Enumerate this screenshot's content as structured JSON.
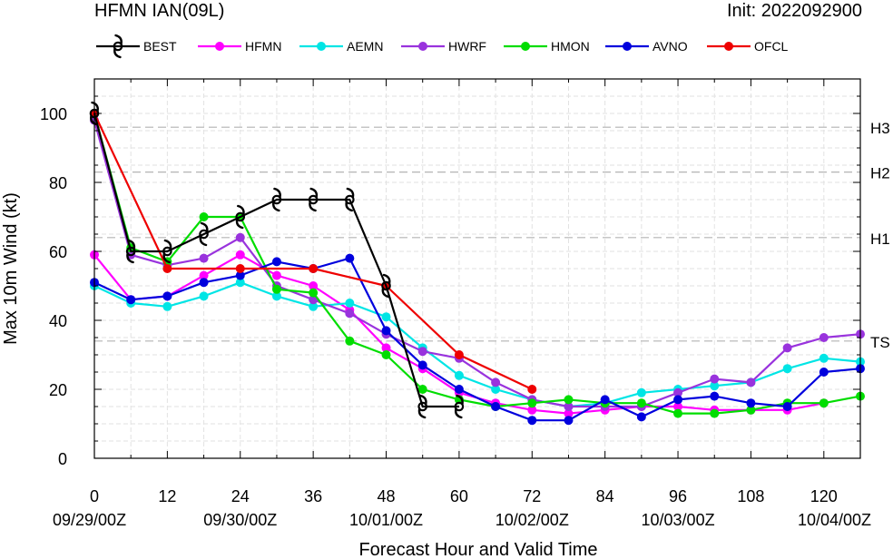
{
  "chart_data": {
    "type": "line",
    "title": "HFMN IAN(09L)",
    "subtitle": "Init: 2022092900",
    "xlabel": "Forecast Hour and Valid Time",
    "ylabel": "Max 10m Wind (kt)",
    "xlim": [
      0,
      126
    ],
    "ylim": [
      0,
      110
    ],
    "grid": true,
    "legend_position": "top",
    "x_ticks": [
      0,
      12,
      24,
      36,
      48,
      60,
      72,
      84,
      96,
      108,
      120
    ],
    "x_tick_labels": [
      "0",
      "12",
      "24",
      "36",
      "48",
      "60",
      "72",
      "84",
      "96",
      "108",
      "120"
    ],
    "x_date_ticks": [
      0,
      24,
      48,
      72,
      96,
      120
    ],
    "x_date_labels": [
      "09/29/00Z",
      "09/30/00Z",
      "10/01/00Z",
      "10/02/00Z",
      "10/03/00Z",
      "10/04/00Z"
    ],
    "y_ticks": [
      0,
      20,
      40,
      60,
      80,
      100
    ],
    "y_tick_labels": [
      "0",
      "20",
      "40",
      "60",
      "80",
      "100"
    ],
    "thresholds": [
      {
        "label": "TS",
        "value": 34
      },
      {
        "label": "H1",
        "value": 64
      },
      {
        "label": "H2",
        "value": 83
      },
      {
        "label": "H3",
        "value": 96
      }
    ],
    "series": [
      {
        "name": "BEST",
        "color": "#000000",
        "marker": "hurricane-symbol",
        "x": [
          0,
          6,
          12,
          18,
          24,
          30,
          36,
          42,
          48,
          54,
          60
        ],
        "values": [
          100,
          60,
          60,
          65,
          70,
          75,
          75,
          75,
          50,
          15,
          15
        ]
      },
      {
        "name": "HFMN",
        "color": "#ff00ff",
        "marker": "circle",
        "x": [
          0,
          6,
          12,
          18,
          24,
          30,
          36,
          42,
          48,
          54,
          60,
          66,
          72,
          78,
          84,
          90,
          96,
          102,
          108,
          114,
          120
        ],
        "values": [
          59,
          46,
          47,
          53,
          59,
          53,
          50,
          43,
          32,
          26,
          19,
          16,
          14,
          13,
          14,
          15,
          15,
          14,
          14,
          14,
          16
        ]
      },
      {
        "name": "AEMN",
        "color": "#00e5e5",
        "marker": "circle",
        "x": [
          0,
          6,
          12,
          18,
          24,
          30,
          36,
          42,
          48,
          54,
          60,
          66,
          72,
          78,
          84,
          90,
          96,
          102,
          108,
          114,
          120,
          126
        ],
        "values": [
          50,
          45,
          44,
          47,
          51,
          47,
          44,
          45,
          41,
          32,
          24,
          20,
          17,
          15,
          16,
          19,
          20,
          21,
          22,
          26,
          29,
          28
        ]
      },
      {
        "name": "HWRF",
        "color": "#9933dd",
        "marker": "circle",
        "x": [
          0,
          6,
          12,
          18,
          24,
          30,
          36,
          42,
          48,
          54,
          60,
          66,
          72,
          78,
          84,
          90,
          96,
          102,
          108,
          114,
          120,
          126
        ],
        "values": [
          98,
          59,
          56,
          58,
          64,
          50,
          46,
          42,
          36,
          31,
          29,
          22,
          17,
          15,
          15,
          15,
          19,
          23,
          22,
          32,
          35,
          36
        ]
      },
      {
        "name": "HMON",
        "color": "#00dd00",
        "marker": "circle",
        "x": [
          0,
          6,
          12,
          18,
          24,
          30,
          36,
          42,
          48,
          54,
          60,
          66,
          72,
          78,
          84,
          90,
          96,
          102,
          108,
          114,
          120,
          126
        ],
        "values": [
          100,
          61,
          57,
          70,
          70,
          49,
          48,
          34,
          30,
          20,
          17,
          15,
          16,
          17,
          16,
          16,
          13,
          13,
          14,
          16,
          16,
          18
        ]
      },
      {
        "name": "AVNO",
        "color": "#0000dd",
        "marker": "circle",
        "x": [
          0,
          6,
          12,
          18,
          24,
          30,
          36,
          42,
          48,
          54,
          60,
          66,
          72,
          78,
          84,
          90,
          96,
          102,
          108,
          114,
          120,
          126
        ],
        "values": [
          51,
          46,
          47,
          51,
          53,
          57,
          55,
          58,
          37,
          27,
          20,
          15,
          11,
          11,
          17,
          12,
          17,
          18,
          16,
          15,
          25,
          26
        ]
      },
      {
        "name": "OFCL",
        "color": "#ee0000",
        "marker": "circle",
        "x": [
          0,
          12,
          24,
          36,
          48,
          60,
          72
        ],
        "values": [
          100,
          55,
          55,
          55,
          50,
          30,
          20
        ]
      }
    ]
  }
}
